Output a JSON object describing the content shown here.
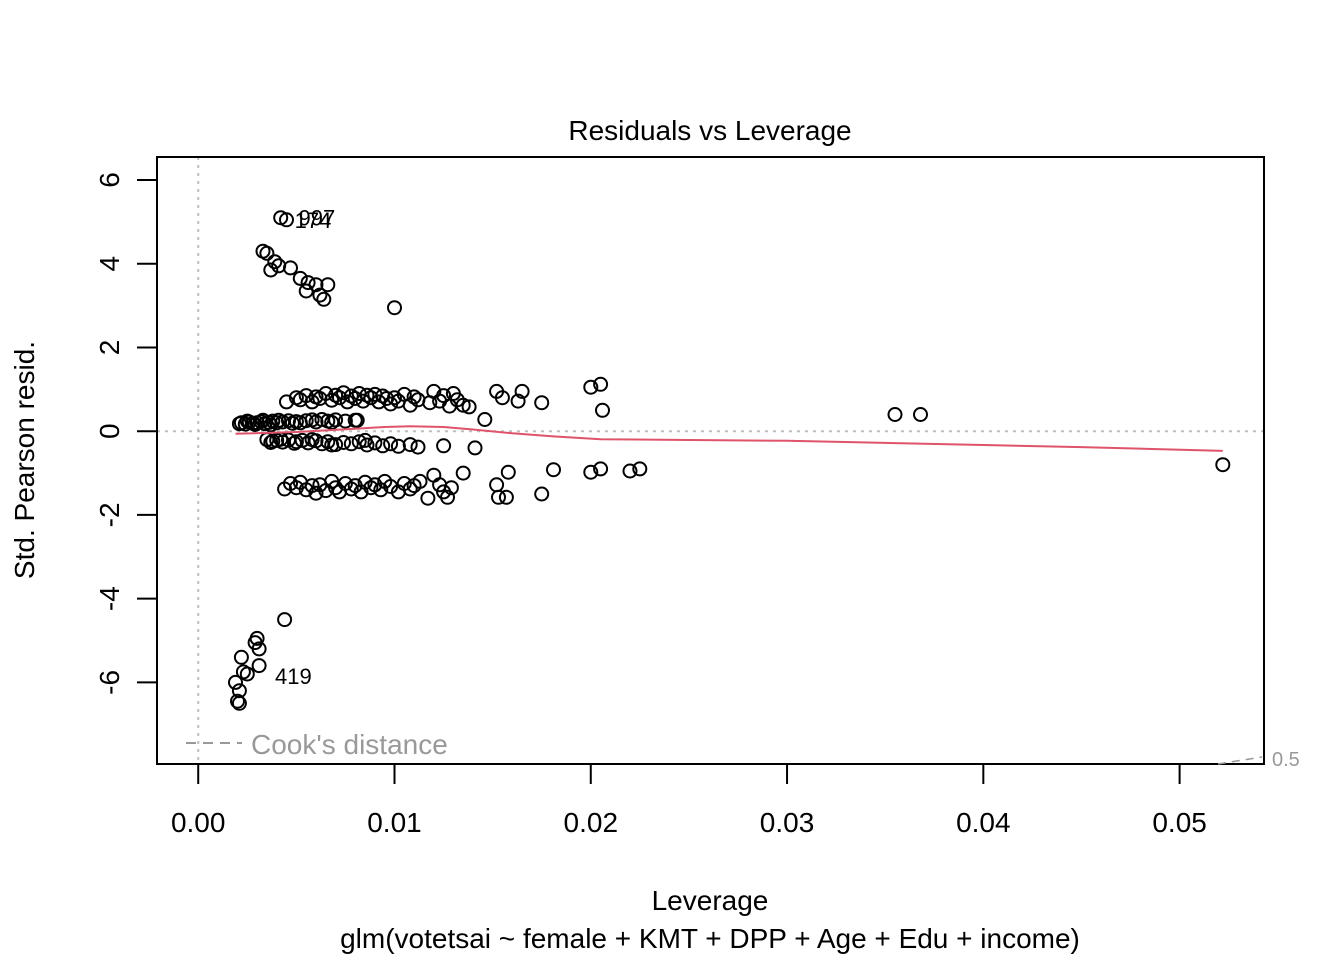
{
  "chart_data": {
    "type": "scatter",
    "title": "Residuals vs Leverage",
    "xlabel": "Leverage",
    "subtitle": "glm(votetsai ~ female + KMT + DPP + Age + Edu + income)",
    "ylabel": "Std. Pearson resid.",
    "xlim": [
      -0.0021,
      0.0543
    ],
    "ylim": [
      -7.95,
      6.55
    ],
    "x_ticks": [
      0.0,
      0.01,
      0.02,
      0.03,
      0.04,
      0.05
    ],
    "x_tick_labels": [
      "0.00",
      "0.01",
      "0.02",
      "0.03",
      "0.04",
      "0.05"
    ],
    "y_ticks": [
      -6,
      -4,
      -2,
      0,
      2,
      4,
      6
    ],
    "y_tick_labels": [
      "-6",
      "-4",
      "-2",
      "0",
      "2",
      "4",
      "6"
    ],
    "reference_lines": {
      "h": 0,
      "v": 0
    },
    "legend": {
      "position": "bottom-left",
      "label": "Cook's distance"
    },
    "cooks_contour_label": "0.5",
    "point_labels": [
      {
        "text": "997",
        "x": 0.0045,
        "y": 5.1
      },
      {
        "text": "174",
        "x": 0.0043,
        "y": 5.05
      },
      {
        "text": "419",
        "x": 0.0033,
        "y": -5.85
      }
    ],
    "colors": {
      "smooth": "#DF536B",
      "reference": "#BEBEBE",
      "legend": "#999999",
      "points": "#000000"
    },
    "smooth_line": [
      [
        0.0019,
        -0.06
      ],
      [
        0.0035,
        -0.04
      ],
      [
        0.005,
        -0.02
      ],
      [
        0.0065,
        0.02
      ],
      [
        0.008,
        0.06
      ],
      [
        0.0095,
        0.1
      ],
      [
        0.0108,
        0.12
      ],
      [
        0.0125,
        0.1
      ],
      [
        0.014,
        0.04
      ],
      [
        0.016,
        -0.05
      ],
      [
        0.018,
        -0.12
      ],
      [
        0.0205,
        -0.19
      ],
      [
        0.025,
        -0.21
      ],
      [
        0.03,
        -0.23
      ],
      [
        0.035,
        -0.28
      ],
      [
        0.04,
        -0.33
      ],
      [
        0.045,
        -0.38
      ],
      [
        0.0522,
        -0.47
      ]
    ],
    "points": [
      [
        0.0021,
        0.18
      ],
      [
        0.0022,
        0.2
      ],
      [
        0.0024,
        0.17
      ],
      [
        0.0026,
        0.22
      ],
      [
        0.0028,
        0.19
      ],
      [
        0.003,
        0.2
      ],
      [
        0.0032,
        0.23
      ],
      [
        0.0034,
        0.18
      ],
      [
        0.0036,
        0.21
      ],
      [
        0.0038,
        0.24
      ],
      [
        0.004,
        0.2
      ],
      [
        0.0043,
        0.22
      ],
      [
        0.0046,
        0.25
      ],
      [
        0.0048,
        0.19
      ],
      [
        0.005,
        0.23
      ],
      [
        0.0055,
        0.25
      ],
      [
        0.006,
        0.22
      ],
      [
        0.0063,
        0.28
      ],
      [
        0.0066,
        0.24
      ],
      [
        0.007,
        0.27
      ],
      [
        0.0075,
        0.24
      ],
      [
        0.008,
        0.26
      ],
      [
        0.0029,
        0.16
      ],
      [
        0.0033,
        0.26
      ],
      [
        0.0037,
        0.15
      ],
      [
        0.0041,
        0.26
      ],
      [
        0.0052,
        0.2
      ],
      [
        0.0058,
        0.27
      ],
      [
        0.0068,
        0.21
      ],
      [
        0.0025,
        0.24
      ],
      [
        0.0045,
        0.7
      ],
      [
        0.005,
        0.8
      ],
      [
        0.0052,
        0.75
      ],
      [
        0.0055,
        0.85
      ],
      [
        0.0058,
        0.7
      ],
      [
        0.006,
        0.82
      ],
      [
        0.0062,
        0.78
      ],
      [
        0.0065,
        0.9
      ],
      [
        0.0068,
        0.74
      ],
      [
        0.007,
        0.86
      ],
      [
        0.0072,
        0.8
      ],
      [
        0.0074,
        0.92
      ],
      [
        0.0076,
        0.7
      ],
      [
        0.0078,
        0.84
      ],
      [
        0.008,
        0.78
      ],
      [
        0.0082,
        0.9
      ],
      [
        0.0084,
        0.72
      ],
      [
        0.0086,
        0.86
      ],
      [
        0.0088,
        0.8
      ],
      [
        0.009,
        0.88
      ],
      [
        0.0092,
        0.7
      ],
      [
        0.0094,
        0.84
      ],
      [
        0.0096,
        0.78
      ],
      [
        0.0098,
        0.65
      ],
      [
        0.01,
        0.8
      ],
      [
        0.0102,
        0.72
      ],
      [
        0.0105,
        0.88
      ],
      [
        0.0108,
        0.62
      ],
      [
        0.011,
        0.82
      ],
      [
        0.0112,
        0.75
      ],
      [
        0.0118,
        0.68
      ],
      [
        0.012,
        0.95
      ],
      [
        0.0123,
        0.72
      ],
      [
        0.0125,
        0.85
      ],
      [
        0.0128,
        0.6
      ],
      [
        0.013,
        0.9
      ],
      [
        0.0132,
        0.75
      ],
      [
        0.0135,
        0.62
      ],
      [
        0.0138,
        0.58
      ],
      [
        0.0152,
        0.95
      ],
      [
        0.0155,
        0.8
      ],
      [
        0.0163,
        0.72
      ],
      [
        0.0165,
        0.95
      ],
      [
        0.0175,
        0.68
      ],
      [
        0.02,
        1.05
      ],
      [
        0.0205,
        1.12
      ],
      [
        0.0206,
        0.5
      ],
      [
        0.0146,
        0.28
      ],
      [
        0.0081,
        0.26
      ],
      [
        0.0355,
        0.4
      ],
      [
        0.0368,
        0.4
      ],
      [
        0.0035,
        -0.2
      ],
      [
        0.0038,
        -0.24
      ],
      [
        0.004,
        -0.22
      ],
      [
        0.0043,
        -0.26
      ],
      [
        0.0046,
        -0.21
      ],
      [
        0.005,
        -0.25
      ],
      [
        0.0053,
        -0.22
      ],
      [
        0.0056,
        -0.28
      ],
      [
        0.006,
        -0.23
      ],
      [
        0.0063,
        -0.3
      ],
      [
        0.0066,
        -0.25
      ],
      [
        0.007,
        -0.32
      ],
      [
        0.0074,
        -0.27
      ],
      [
        0.0078,
        -0.3
      ],
      [
        0.0082,
        -0.25
      ],
      [
        0.0086,
        -0.33
      ],
      [
        0.009,
        -0.28
      ],
      [
        0.0094,
        -0.35
      ],
      [
        0.0098,
        -0.3
      ],
      [
        0.0102,
        -0.36
      ],
      [
        0.0108,
        -0.32
      ],
      [
        0.0112,
        -0.38
      ],
      [
        0.0125,
        -0.35
      ],
      [
        0.0141,
        -0.4
      ],
      [
        0.0037,
        -0.27
      ],
      [
        0.0042,
        -0.19
      ],
      [
        0.0049,
        -0.29
      ],
      [
        0.0058,
        -0.2
      ],
      [
        0.0068,
        -0.33
      ],
      [
        0.0085,
        -0.22
      ],
      [
        0.0044,
        -1.38
      ],
      [
        0.0047,
        -1.25
      ],
      [
        0.005,
        -1.35
      ],
      [
        0.0052,
        -1.22
      ],
      [
        0.0055,
        -1.4
      ],
      [
        0.0058,
        -1.3
      ],
      [
        0.006,
        -1.48
      ],
      [
        0.0062,
        -1.28
      ],
      [
        0.0065,
        -1.42
      ],
      [
        0.0068,
        -1.2
      ],
      [
        0.007,
        -1.35
      ],
      [
        0.0072,
        -1.45
      ],
      [
        0.0075,
        -1.25
      ],
      [
        0.0078,
        -1.38
      ],
      [
        0.008,
        -1.3
      ],
      [
        0.0083,
        -1.45
      ],
      [
        0.0085,
        -1.22
      ],
      [
        0.0088,
        -1.35
      ],
      [
        0.009,
        -1.28
      ],
      [
        0.0093,
        -1.4
      ],
      [
        0.0095,
        -1.2
      ],
      [
        0.0098,
        -1.32
      ],
      [
        0.0102,
        -1.45
      ],
      [
        0.0105,
        -1.25
      ],
      [
        0.0108,
        -1.38
      ],
      [
        0.011,
        -1.3
      ],
      [
        0.0113,
        -1.2
      ],
      [
        0.0117,
        -1.6
      ],
      [
        0.012,
        -1.05
      ],
      [
        0.0123,
        -1.28
      ],
      [
        0.0125,
        -1.45
      ],
      [
        0.0127,
        -1.58
      ],
      [
        0.0129,
        -1.35
      ],
      [
        0.0135,
        -1.0
      ],
      [
        0.0152,
        -1.28
      ],
      [
        0.0153,
        -1.58
      ],
      [
        0.0157,
        -1.58
      ],
      [
        0.0158,
        -0.98
      ],
      [
        0.0175,
        -1.5
      ],
      [
        0.0181,
        -0.92
      ],
      [
        0.02,
        -0.98
      ],
      [
        0.0205,
        -0.9
      ],
      [
        0.022,
        -0.95
      ],
      [
        0.0225,
        -0.9
      ],
      [
        0.0522,
        -0.8
      ],
      [
        0.0042,
        5.1
      ],
      [
        0.0045,
        5.05
      ],
      [
        0.0033,
        4.3
      ],
      [
        0.0035,
        4.25
      ],
      [
        0.0039,
        4.05
      ],
      [
        0.0041,
        3.95
      ],
      [
        0.0037,
        3.85
      ],
      [
        0.0047,
        3.9
      ],
      [
        0.0052,
        3.65
      ],
      [
        0.0056,
        3.55
      ],
      [
        0.0055,
        3.35
      ],
      [
        0.006,
        3.5
      ],
      [
        0.0062,
        3.25
      ],
      [
        0.0064,
        3.15
      ],
      [
        0.0066,
        3.5
      ],
      [
        0.01,
        2.95
      ],
      [
        0.0044,
        -4.5
      ],
      [
        0.003,
        -4.95
      ],
      [
        0.0029,
        -5.05
      ],
      [
        0.0031,
        -5.2
      ],
      [
        0.0022,
        -5.4
      ],
      [
        0.0031,
        -5.6
      ],
      [
        0.0025,
        -5.8
      ],
      [
        0.0023,
        -5.75
      ],
      [
        0.0019,
        -6.0
      ],
      [
        0.0021,
        -6.2
      ],
      [
        0.002,
        -6.45
      ],
      [
        0.0021,
        -6.5
      ]
    ]
  }
}
